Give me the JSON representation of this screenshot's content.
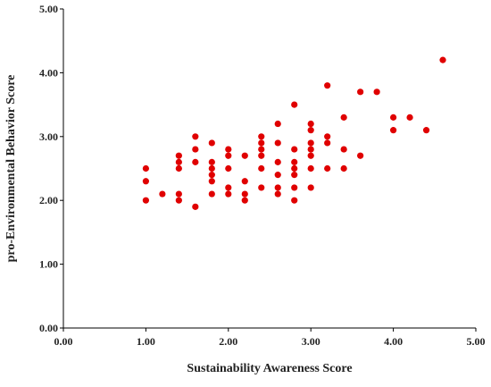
{
  "chart_data": {
    "type": "scatter",
    "title": "",
    "xlabel": "Sustainability Awareness Score",
    "ylabel": "pro-Environmental Behavior Score",
    "xlim": [
      0,
      5
    ],
    "ylim": [
      0,
      5
    ],
    "x_ticks": [
      "0.00",
      "1.00",
      "2.00",
      "3.00",
      "4.00",
      "5.00"
    ],
    "y_ticks": [
      "0.00",
      "1.00",
      "2.00",
      "3.00",
      "4.00",
      "5.00"
    ],
    "grid": false,
    "legend": "none",
    "marker_color": "#e00000",
    "points": [
      [
        1.0,
        2.5
      ],
      [
        1.0,
        2.3
      ],
      [
        1.0,
        2.0
      ],
      [
        1.2,
        2.1
      ],
      [
        1.4,
        2.7
      ],
      [
        1.4,
        2.6
      ],
      [
        1.4,
        2.5
      ],
      [
        1.4,
        2.1
      ],
      [
        1.4,
        2.0
      ],
      [
        1.6,
        3.0
      ],
      [
        1.6,
        2.8
      ],
      [
        1.6,
        2.6
      ],
      [
        1.6,
        1.9
      ],
      [
        1.8,
        2.9
      ],
      [
        1.8,
        2.6
      ],
      [
        1.8,
        2.5
      ],
      [
        1.8,
        2.4
      ],
      [
        1.8,
        2.3
      ],
      [
        1.8,
        2.1
      ],
      [
        2.0,
        2.8
      ],
      [
        2.0,
        2.7
      ],
      [
        2.0,
        2.5
      ],
      [
        2.0,
        2.2
      ],
      [
        2.0,
        2.1
      ],
      [
        2.2,
        2.7
      ],
      [
        2.2,
        2.3
      ],
      [
        2.2,
        2.1
      ],
      [
        2.2,
        2.0
      ],
      [
        2.4,
        3.0
      ],
      [
        2.4,
        2.9
      ],
      [
        2.4,
        2.8
      ],
      [
        2.4,
        2.7
      ],
      [
        2.4,
        2.5
      ],
      [
        2.4,
        2.2
      ],
      [
        2.6,
        3.2
      ],
      [
        2.6,
        2.9
      ],
      [
        2.6,
        2.6
      ],
      [
        2.6,
        2.4
      ],
      [
        2.6,
        2.2
      ],
      [
        2.6,
        2.1
      ],
      [
        2.8,
        3.5
      ],
      [
        2.8,
        2.8
      ],
      [
        2.8,
        2.6
      ],
      [
        2.8,
        2.5
      ],
      [
        2.8,
        2.4
      ],
      [
        2.8,
        2.2
      ],
      [
        2.8,
        2.0
      ],
      [
        3.0,
        3.2
      ],
      [
        3.0,
        3.1
      ],
      [
        3.0,
        2.9
      ],
      [
        3.0,
        2.8
      ],
      [
        3.0,
        2.7
      ],
      [
        3.0,
        2.5
      ],
      [
        3.0,
        2.2
      ],
      [
        3.2,
        3.8
      ],
      [
        3.2,
        3.0
      ],
      [
        3.2,
        2.9
      ],
      [
        3.2,
        2.5
      ],
      [
        3.4,
        3.3
      ],
      [
        3.4,
        2.8
      ],
      [
        3.4,
        2.5
      ],
      [
        3.6,
        3.7
      ],
      [
        3.6,
        2.7
      ],
      [
        3.8,
        3.7
      ],
      [
        4.0,
        3.3
      ],
      [
        4.0,
        3.1
      ],
      [
        4.2,
        3.3
      ],
      [
        4.4,
        3.1
      ],
      [
        4.6,
        4.2
      ]
    ]
  }
}
